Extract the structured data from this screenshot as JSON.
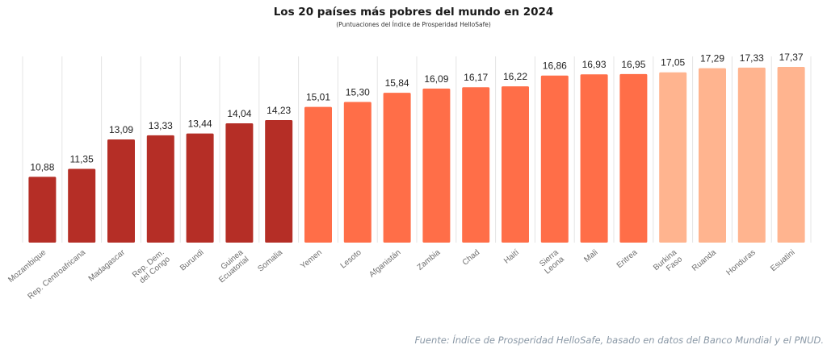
{
  "title": "Los 20 países más pobres del mundo en 2024",
  "subtitle": "(Puntuaciones del Índice de Prosperidad HelloSafe)",
  "source": "Fuente: Índice de Prosperidad HelloSafe, basado en datos del Banco Mundial y el PNUD.",
  "colors": {
    "dark": "#b52e26",
    "mid": "#ff6e48",
    "light": "#ffb48f",
    "grid": "#e4e4e4",
    "label": "#6f6f6f"
  },
  "chart_data": {
    "type": "bar",
    "title": "Los 20 países más pobres del mundo en 2024",
    "subtitle": "(Puntuaciones del Índice de Prosperidad HelloSafe)",
    "categories": [
      "Mozambique",
      "Rep. Centroafricana",
      "Madagascar",
      "Rep. Dem.\ndel Congo",
      "Burundi",
      "Guinea\nEcuatorial",
      "Somalia",
      "Yemen",
      "Lesoto",
      "Afganistán",
      "Zambia",
      "Chad",
      "Haití",
      "Sierra\nLeona",
      "Mali",
      "Eritrea",
      "Burkina\nFaso",
      "Ruanda",
      "Honduras",
      "Esuatini"
    ],
    "values": [
      10.88,
      11.35,
      13.09,
      13.33,
      13.44,
      14.04,
      14.23,
      15.01,
      15.3,
      15.84,
      16.09,
      16.17,
      16.22,
      16.86,
      16.93,
      16.95,
      17.05,
      17.29,
      17.33,
      17.37
    ],
    "value_labels": [
      "10,88",
      "11,35",
      "13,09",
      "13,33",
      "13,44",
      "14,04",
      "14,23",
      "15,01",
      "15,30",
      "15,84",
      "16,09",
      "16,17",
      "16,22",
      "16,86",
      "16,93",
      "16,95",
      "17,05",
      "17,29",
      "17,33",
      "17,37"
    ],
    "bar_color_groups": [
      "dark",
      "dark",
      "dark",
      "dark",
      "dark",
      "dark",
      "dark",
      "mid",
      "mid",
      "mid",
      "mid",
      "mid",
      "mid",
      "mid",
      "mid",
      "mid",
      "light",
      "light",
      "light",
      "light"
    ],
    "ylim": [
      7,
      17.37
    ],
    "grid": "vertical-only",
    "xlabel": "",
    "ylabel": "",
    "legend": "none"
  }
}
